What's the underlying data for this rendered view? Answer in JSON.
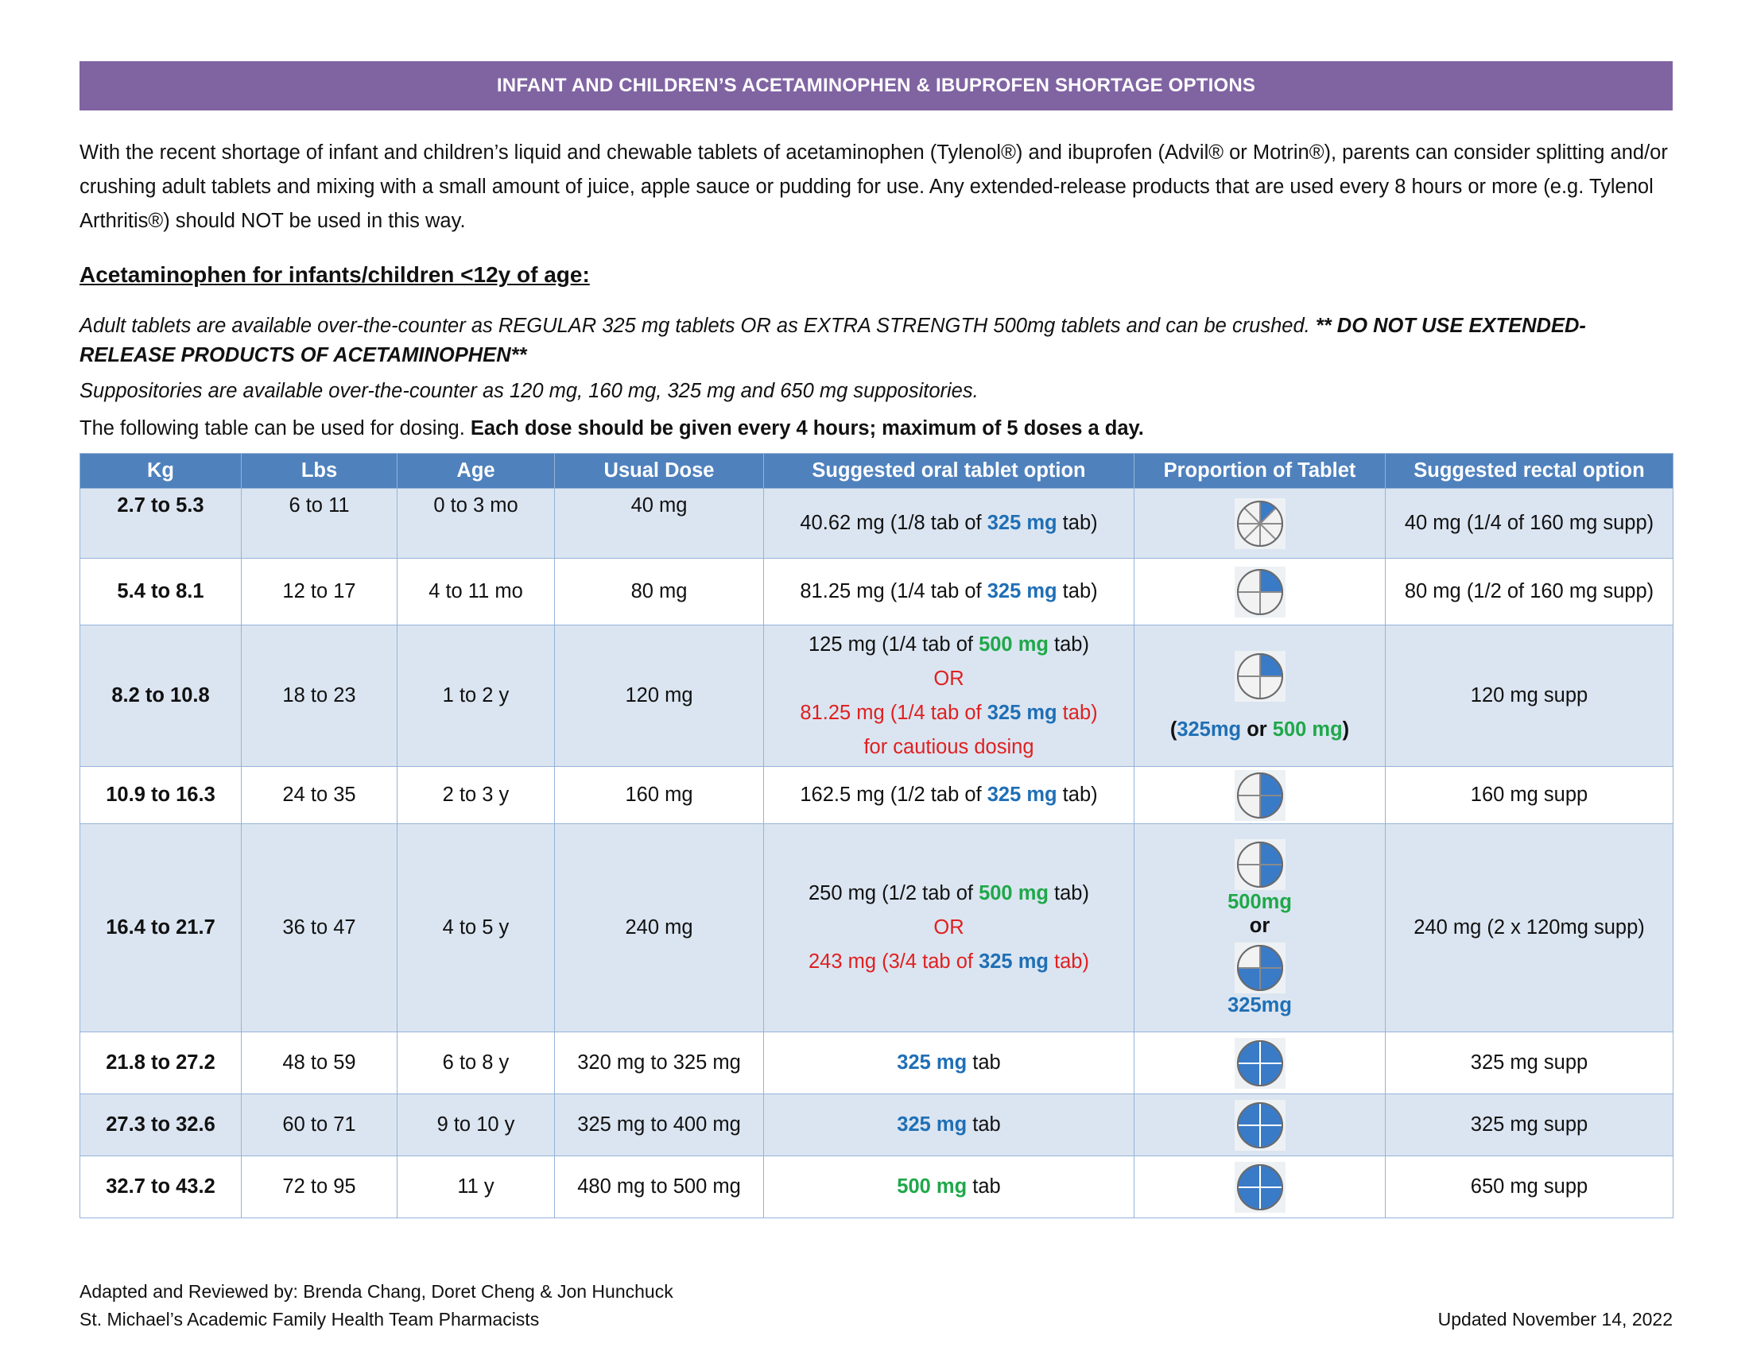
{
  "banner": "INFANT AND CHILDREN’S ACETAMINOPHEN & IBUPROFEN SHORTAGE OPTIONS",
  "intro": "With the recent shortage of infant and children’s liquid and chewable tablets of acetaminophen (Tylenol®) and ibuprofen (Advil® or Motrin®), parents can consider splitting and/or crushing adult tablets and mixing with a small amount of juice, apple sauce or pudding for use.  Any extended-release products that are used every 8 hours or more (e.g. Tylenol Arthritis®) should NOT be used in this way.",
  "heading": "Acetaminophen for infants/children <12y of age:",
  "note1": "Adult tablets are available over-the-counter as REGULAR 325 mg tablets OR as EXTRA STRENGTH 500mg tablets and can be crushed.",
  "note1_bold": "** DO NOT USE EXTENDED-RELEASE PRODUCTS OF ACETAMINOPHEN**",
  "note2": "Suppositories are available over-the-counter as 120 mg, 160 mg, 325 mg and 650 mg suppositories.",
  "dosing_plain": "The following table can be used for dosing.",
  "dosing_bold": "Each dose should be given every 4 hours; maximum of 5 doses a day.",
  "table": {
    "headers": [
      "Kg",
      "Lbs",
      "Age",
      "Usual Dose",
      "Suggested oral tablet option",
      "Proportion of Tablet",
      "Suggested rectal option"
    ],
    "rows": [
      {
        "kg": "2.7 to 5.3",
        "lbs": "6 to 11",
        "age": "0 to 3 mo",
        "dose": "40 mg",
        "oral_pre": "40.62 mg (1/8 tab of ",
        "oral_mg": "325 mg",
        "oral_post": " tab)",
        "rectal": "40 mg (1/4 of 160 mg supp)"
      },
      {
        "kg": "5.4 to 8.1",
        "lbs": "12 to 17",
        "age": "4 to 11 mo",
        "dose": "80 mg",
        "oral_pre": "81.25 mg (1/4 tab of ",
        "oral_mg": "325 mg",
        "oral_post": " tab)",
        "rectal": "80 mg (1/2 of 160 mg supp)"
      },
      {
        "kg": "8.2 to 10.8",
        "lbs": "18 to 23",
        "age": "1 to 2 y",
        "dose": "120 mg",
        "oral_a_pre": "125 mg (1/4 tab of ",
        "oral_a_mg": "500 mg",
        "oral_a_post": " tab)",
        "or": "OR",
        "oral_b_pre": "81.25 mg (1/4 tab of ",
        "oral_b_mg": "325 mg",
        "oral_b_post": " tab)",
        "oral_b_note": "for cautious dosing",
        "prop_open": "(",
        "prop_a": "325mg",
        "prop_or": " or ",
        "prop_b": "500 mg",
        "prop_close": ")",
        "rectal": "120 mg supp"
      },
      {
        "kg": "10.9 to 16.3",
        "lbs": "24 to 35",
        "age": "2 to 3 y",
        "dose": "160 mg",
        "oral_pre": "162.5 mg (1/2 tab of ",
        "oral_mg": "325 mg",
        "oral_post": " tab)",
        "rectal": "160 mg supp"
      },
      {
        "kg": "16.4 to 21.7",
        "lbs": "36 to 47",
        "age": "4 to 5 y",
        "dose": "240 mg",
        "oral_a_pre": "250 mg (1/2 tab of ",
        "oral_a_mg": "500 mg",
        "oral_a_post": " tab)",
        "or": "OR",
        "oral_b_pre": "243 mg (3/4 tab of ",
        "oral_b_mg": "325 mg",
        "oral_b_post": " tab)",
        "prop_a": "500mg",
        "prop_or": "or",
        "prop_b": "325mg",
        "rectal": "240 mg (2 x 120mg supp)"
      },
      {
        "kg": "21.8 to 27.2",
        "lbs": "48 to 59",
        "age": "6 to 8 y",
        "dose": "320 mg to 325 mg",
        "oral_mg": "325 mg",
        "oral_post": " tab",
        "rectal": "325 mg supp"
      },
      {
        "kg": "27.3 to 32.6",
        "lbs": "60 to 71",
        "age": "9 to 10 y",
        "dose": "325 mg to 400 mg",
        "oral_mg": "325 mg",
        "oral_post": " tab",
        "rectal": "325 mg supp"
      },
      {
        "kg": "32.7 to 43.2",
        "lbs": "72 to 95",
        "age": "11 y",
        "dose": "480 mg to 500 mg",
        "oral_mg": "500 mg",
        "oral_post": " tab",
        "rectal": "650 mg supp"
      }
    ]
  },
  "pill_fractions": [
    0.125,
    0.25,
    0.25,
    0.5,
    0.5,
    0.75,
    1,
    1,
    1
  ],
  "colors": {
    "banner": "#8064a2",
    "header": "#4f81bd",
    "alt_row": "#dbe5f1",
    "blue_text": "#1f6fb5",
    "green_text": "#1fa84a",
    "red_text": "#e02020"
  },
  "footer": {
    "line1": "Adapted and Reviewed by: Brenda Chang, Doret Cheng & Jon Hunchuck",
    "line2": "St. Michael’s Academic Family Health Team Pharmacists",
    "updated": "Updated November 14, 2022"
  }
}
